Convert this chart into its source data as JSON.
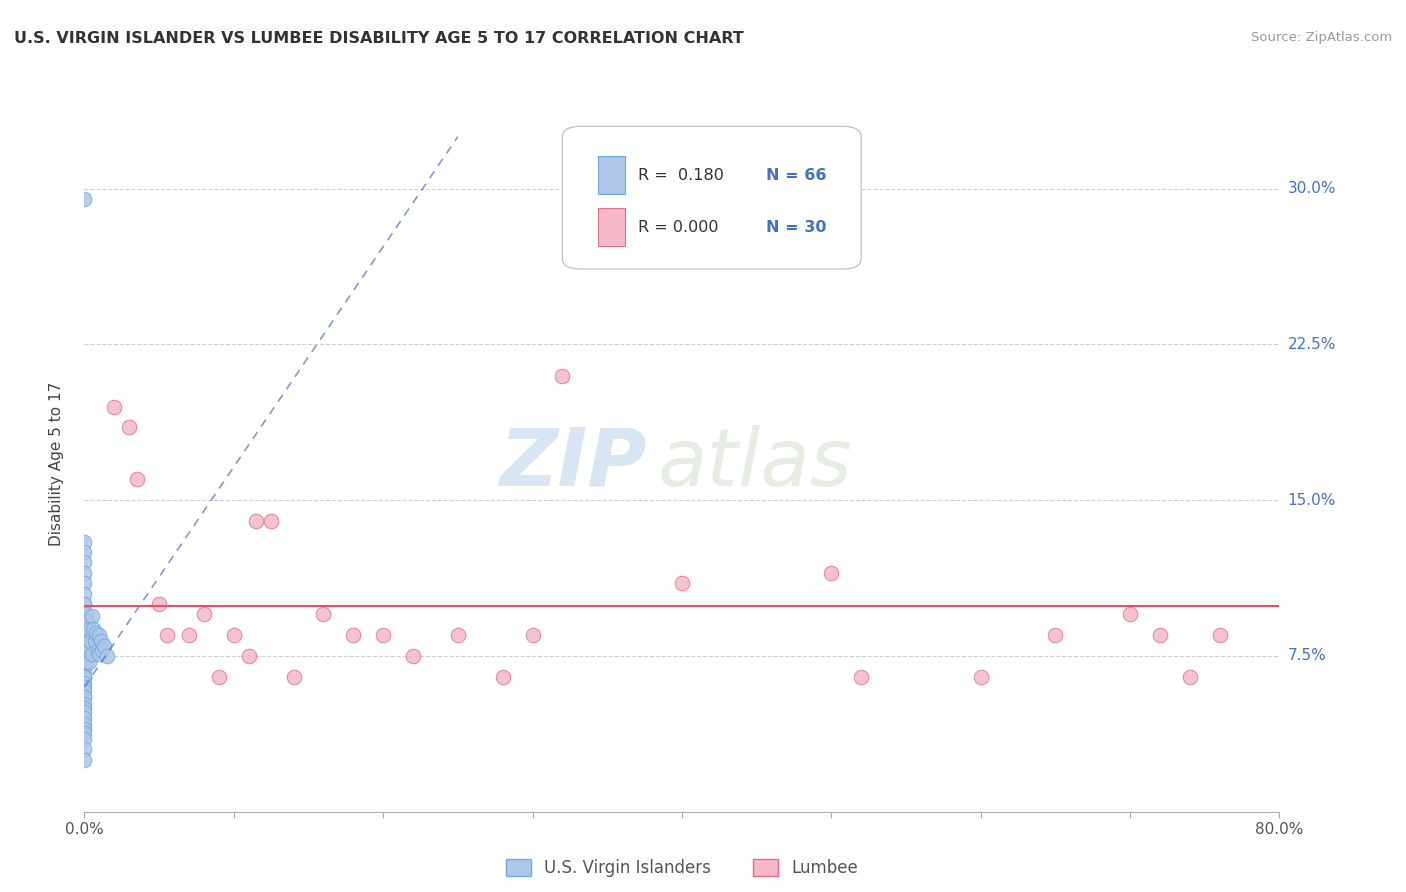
{
  "title": "U.S. VIRGIN ISLANDER VS LUMBEE DISABILITY AGE 5 TO 17 CORRELATION CHART",
  "source": "Source: ZipAtlas.com",
  "ylabel": "Disability Age 5 to 17",
  "xlim": [
    0.0,
    0.8
  ],
  "ylim": [
    0.0,
    0.335
  ],
  "xticks": [
    0.0,
    0.1,
    0.2,
    0.3,
    0.4,
    0.5,
    0.6,
    0.7,
    0.8
  ],
  "yticks": [
    0.075,
    0.15,
    0.225,
    0.3
  ],
  "ytick_labels": [
    "7.5%",
    "15.0%",
    "22.5%",
    "30.0%"
  ],
  "legend_r1": "R =  0.180",
  "legend_n1": "N = 66",
  "legend_r2": "R = 0.000",
  "legend_n2": "N = 30",
  "blue_color": "#aec6e8",
  "blue_edge": "#6fa8dc",
  "pink_color": "#f4b8c8",
  "pink_edge": "#e07090",
  "blue_line_color": "#4472c4",
  "pink_line_color": "#e05070",
  "tick_color": "#4472c4",
  "background_color": "#ffffff",
  "watermark_zip": "ZIP",
  "watermark_atlas": "atlas",
  "blue_dots_x": [
    0.0,
    0.0,
    0.0,
    0.0,
    0.0,
    0.0,
    0.0,
    0.0,
    0.0,
    0.0,
    0.0,
    0.0,
    0.0,
    0.0,
    0.0,
    0.0,
    0.0,
    0.0,
    0.0,
    0.0,
    0.0,
    0.0,
    0.0,
    0.0,
    0.0,
    0.0,
    0.0,
    0.0,
    0.0,
    0.0,
    0.0,
    0.0,
    0.0,
    0.0,
    0.0,
    0.0,
    0.0,
    0.0,
    0.0,
    0.0,
    0.0,
    0.0,
    0.0,
    0.001,
    0.001,
    0.001,
    0.001,
    0.001,
    0.002,
    0.002,
    0.003,
    0.003,
    0.003,
    0.004,
    0.005,
    0.005,
    0.006,
    0.007,
    0.008,
    0.009,
    0.01,
    0.01,
    0.011,
    0.012,
    0.013,
    0.015
  ],
  "blue_dots_y": [
    0.295,
    0.13,
    0.125,
    0.12,
    0.115,
    0.11,
    0.105,
    0.1,
    0.1,
    0.095,
    0.09,
    0.09,
    0.09,
    0.085,
    0.085,
    0.08,
    0.08,
    0.08,
    0.075,
    0.075,
    0.075,
    0.072,
    0.07,
    0.07,
    0.068,
    0.065,
    0.065,
    0.065,
    0.062,
    0.06,
    0.058,
    0.055,
    0.055,
    0.052,
    0.05,
    0.048,
    0.045,
    0.042,
    0.04,
    0.038,
    0.035,
    0.03,
    0.025,
    0.095,
    0.088,
    0.082,
    0.078,
    0.072,
    0.092,
    0.085,
    0.088,
    0.08,
    0.072,
    0.082,
    0.094,
    0.076,
    0.088,
    0.082,
    0.086,
    0.078,
    0.085,
    0.076,
    0.082,
    0.078,
    0.08,
    0.075
  ],
  "pink_dots_x": [
    0.02,
    0.03,
    0.035,
    0.05,
    0.055,
    0.07,
    0.08,
    0.09,
    0.1,
    0.11,
    0.115,
    0.125,
    0.14,
    0.16,
    0.18,
    0.2,
    0.22,
    0.25,
    0.28,
    0.3,
    0.32,
    0.4,
    0.5,
    0.52,
    0.6,
    0.65,
    0.7,
    0.72,
    0.74,
    0.76
  ],
  "pink_dots_y": [
    0.195,
    0.185,
    0.16,
    0.1,
    0.085,
    0.085,
    0.095,
    0.065,
    0.085,
    0.075,
    0.14,
    0.14,
    0.065,
    0.095,
    0.085,
    0.085,
    0.075,
    0.085,
    0.065,
    0.085,
    0.21,
    0.11,
    0.115,
    0.065,
    0.065,
    0.085,
    0.095,
    0.085,
    0.065,
    0.085
  ],
  "pink_line_y": 0.099
}
